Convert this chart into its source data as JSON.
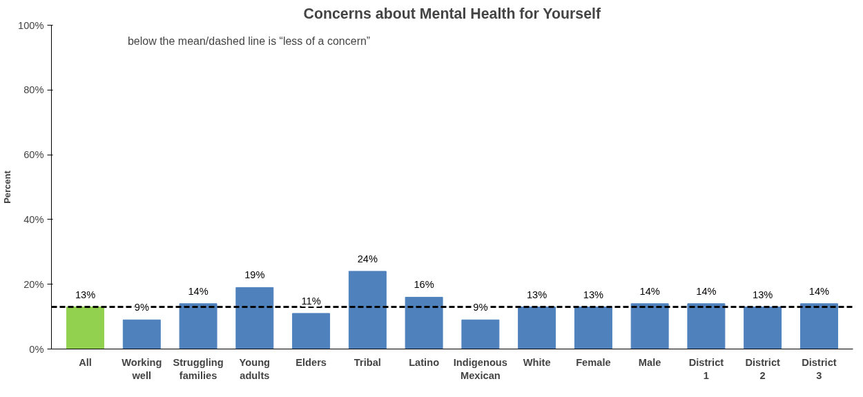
{
  "chart_data": {
    "type": "bar",
    "title": "Concerns about Mental Health for Yourself",
    "ylabel": "Percent",
    "categories": [
      "All",
      "Working well",
      "Struggling families",
      "Young adults",
      "Elders",
      "Tribal",
      "Latino",
      "Indigenous Mexican",
      "White",
      "Female",
      "Male",
      "District 1",
      "District 2",
      "District 3"
    ],
    "values": [
      13,
      9,
      14,
      19,
      11,
      24,
      16,
      9,
      13,
      13,
      14,
      14,
      13,
      14
    ],
    "colors": [
      "#92d050",
      "#4f81bd",
      "#4f81bd",
      "#4f81bd",
      "#4f81bd",
      "#4f81bd",
      "#4f81bd",
      "#4f81bd",
      "#4f81bd",
      "#4f81bd",
      "#4f81bd",
      "#4f81bd",
      "#4f81bd",
      "#4f81bd"
    ],
    "ylim": [
      0,
      100
    ],
    "yticks": [
      {
        "value": 0,
        "label": "0%"
      },
      {
        "value": 20,
        "label": "20%"
      },
      {
        "value": 40,
        "label": "40%"
      },
      {
        "value": 60,
        "label": "60%"
      },
      {
        "value": 80,
        "label": "80%"
      },
      {
        "value": 100,
        "label": "100%"
      }
    ],
    "value_labels": [
      "13%",
      "9%",
      "14%",
      "19%",
      "11%",
      "24%",
      "16%",
      "9%",
      "13%",
      "13%",
      "14%",
      "14%",
      "13%",
      "14%"
    ],
    "grid": false,
    "ref_lines": [
      {
        "axis": "y",
        "value": 13,
        "color": "#000000",
        "line_style": "dashed"
      }
    ],
    "annotations": [
      "below the mean/dashed line is “less of a concern”"
    ]
  }
}
